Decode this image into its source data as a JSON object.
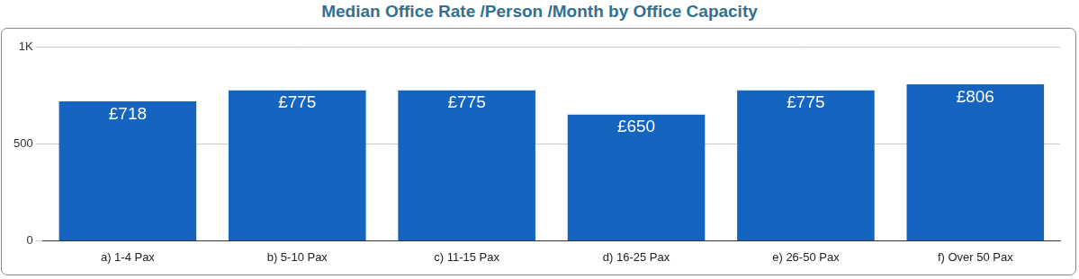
{
  "chart_data": {
    "type": "bar",
    "title": "Median Office Rate /Person /Month by Office Capacity",
    "categories": [
      "a) 1-4 Pax",
      "b) 5-10 Pax",
      "c) 11-15 Pax",
      "d) 16-25 Pax",
      "e) 26-50 Pax",
      "f) Over 50 Pax"
    ],
    "values": [
      718,
      775,
      775,
      650,
      775,
      806
    ],
    "value_labels": [
      "£718",
      "£775",
      "£775",
      "£650",
      "£775",
      "£806"
    ],
    "color": "#1565c0",
    "ylim": [
      0,
      1000
    ],
    "yticks": [
      0,
      500,
      {
        "value": 1000,
        "label": "1K"
      }
    ],
    "grid": true,
    "data_labels": true
  }
}
